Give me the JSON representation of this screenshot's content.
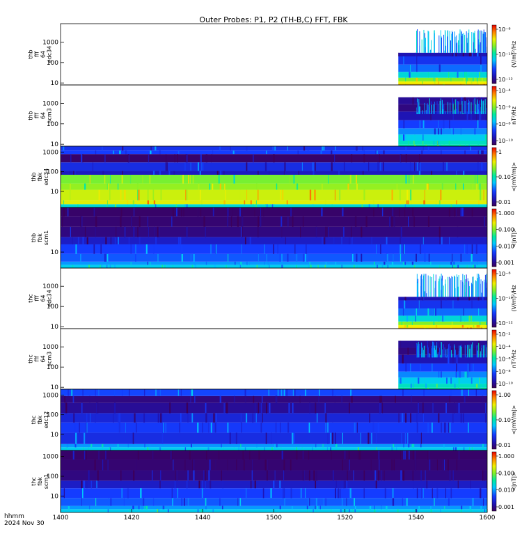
{
  "title": "Outer Probes: P1, P2 (TH-B,C) FFT, FBK",
  "time_axis": {
    "ticks": [
      "1400",
      "1420",
      "1440",
      "1500",
      "1520",
      "1540",
      "1600"
    ],
    "corner_label_1": "hhmm",
    "corner_label_2": "2024 Nov 30"
  },
  "chart_data": [
    {
      "type": "heatmap",
      "ylabel": [
        "thb",
        "fff",
        "64",
        "edc34"
      ],
      "y_ticks": [
        "1000",
        "100",
        "10"
      ],
      "ylim": [
        8,
        8000
      ],
      "y_scale": "log",
      "colorbar": {
        "label": "(V/m)²/Hz",
        "ticks": [
          "10⁻⁸",
          "10⁻¹⁰",
          "10⁻¹²"
        ],
        "scale": "log"
      },
      "data_start_hhmm": "1535",
      "style": "ffft-e"
    },
    {
      "type": "heatmap",
      "ylabel": [
        "thb",
        "fff",
        "64",
        "scm3"
      ],
      "y_ticks": [
        "1000",
        "100",
        "10"
      ],
      "ylim": [
        8,
        8000
      ],
      "y_scale": "log",
      "colorbar": {
        "label": "nT²/Hz",
        "ticks": [
          "10⁻⁴",
          "10⁻⁶",
          "10⁻⁸",
          "10⁻¹⁰"
        ],
        "scale": "log"
      },
      "data_start_hhmm": "1535",
      "style": "ffft-b"
    },
    {
      "type": "heatmap",
      "ylabel": [
        "thb",
        "fbk",
        "edc34"
      ],
      "y_ticks": [
        "1000",
        "100",
        "10"
      ],
      "ylim": [
        1.5,
        2000
      ],
      "y_scale": "log",
      "colorbar": {
        "label": "<|mV/m|>",
        "ticks": [
          "1",
          "0.10",
          "0.01"
        ],
        "scale": "log"
      },
      "data_start_hhmm": "1400",
      "style": "fbk-e"
    },
    {
      "type": "heatmap",
      "ylabel": [
        "thb",
        "fbk",
        "scm1"
      ],
      "y_ticks": [
        "10"
      ],
      "ylim": [
        1.5,
        2000
      ],
      "y_scale": "log",
      "colorbar": {
        "label": "<|nT|>",
        "ticks": [
          "1.000",
          "0.100",
          "0.010",
          "0.001"
        ],
        "scale": "log"
      },
      "data_start_hhmm": "1400",
      "style": "fbk-b"
    },
    {
      "type": "heatmap",
      "ylabel": [
        "thc",
        "fff",
        "64",
        "edc34"
      ],
      "y_ticks": [
        "1000",
        "100",
        "10"
      ],
      "ylim": [
        8,
        8000
      ],
      "y_scale": "log",
      "colorbar": {
        "label": "(V/m)²/Hz",
        "ticks": [
          "10⁻⁸",
          "10⁻¹⁰",
          "10⁻¹²"
        ],
        "scale": "log"
      },
      "data_start_hhmm": "1535",
      "style": "ffft-e"
    },
    {
      "type": "heatmap",
      "ylabel": [
        "thc",
        "fff",
        "64",
        "scm3"
      ],
      "y_ticks": [
        "1000",
        "100",
        "10"
      ],
      "ylim": [
        8,
        8000
      ],
      "y_scale": "log",
      "colorbar": {
        "label": "nT²/Hz",
        "ticks": [
          "10⁻²",
          "10⁻⁴",
          "10⁻⁶",
          "10⁻⁸",
          "10⁻¹⁰"
        ],
        "scale": "log"
      },
      "data_start_hhmm": "1535",
      "style": "ffft-b"
    },
    {
      "type": "heatmap",
      "ylabel": [
        "thc",
        "fbk",
        "edc12"
      ],
      "y_ticks": [
        "1000",
        "100",
        "10"
      ],
      "ylim": [
        1.5,
        2000
      ],
      "y_scale": "log",
      "colorbar": {
        "label": "<|mV/m|>",
        "ticks": [
          "1.00",
          "0.10",
          "0.01"
        ],
        "scale": "log"
      },
      "data_start_hhmm": "1400",
      "style": "fbk-e2"
    },
    {
      "type": "heatmap",
      "ylabel": [
        "thc",
        "fbk",
        "scm1"
      ],
      "y_ticks": [
        "1000",
        "100",
        "10"
      ],
      "ylim": [
        1.5,
        2000
      ],
      "y_scale": "log",
      "colorbar": {
        "label": "<|nT|>",
        "ticks": [
          "1.000",
          "0.100",
          "0.010",
          "0.001"
        ],
        "scale": "log"
      },
      "data_start_hhmm": "1400",
      "style": "fbk-b"
    }
  ]
}
